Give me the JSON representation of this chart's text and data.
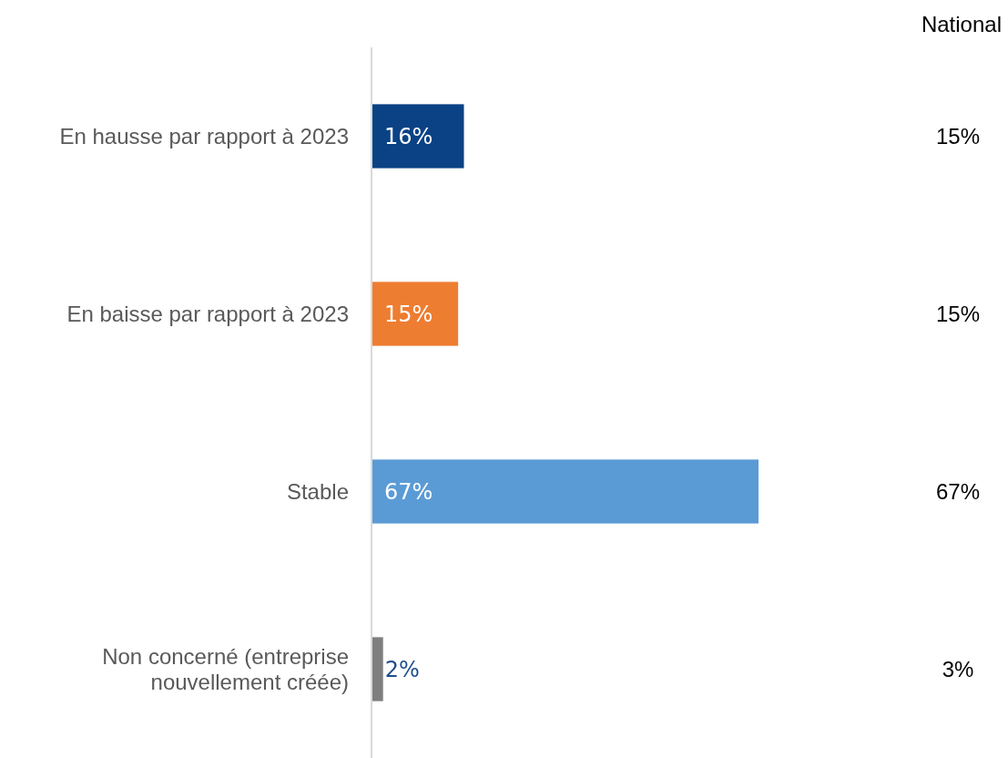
{
  "chart_data": {
    "type": "bar",
    "orientation": "horizontal",
    "categories": [
      "En hausse par rapport à 2023",
      "En baisse par rapport à 2023",
      "Stable",
      "Non concerné (entreprise nouvellement créée)"
    ],
    "values": [
      16,
      15,
      67,
      2
    ],
    "colors": [
      "#0a4285",
      "#ed7d31",
      "#5b9bd5",
      "#7f7f7f"
    ],
    "value_labels": [
      "16%",
      "15%",
      "67%",
      "2%"
    ],
    "tick_labels": "y",
    "annotations": [
      "National",
      "15%",
      "15%",
      "67%",
      "3%"
    ]
  }
}
